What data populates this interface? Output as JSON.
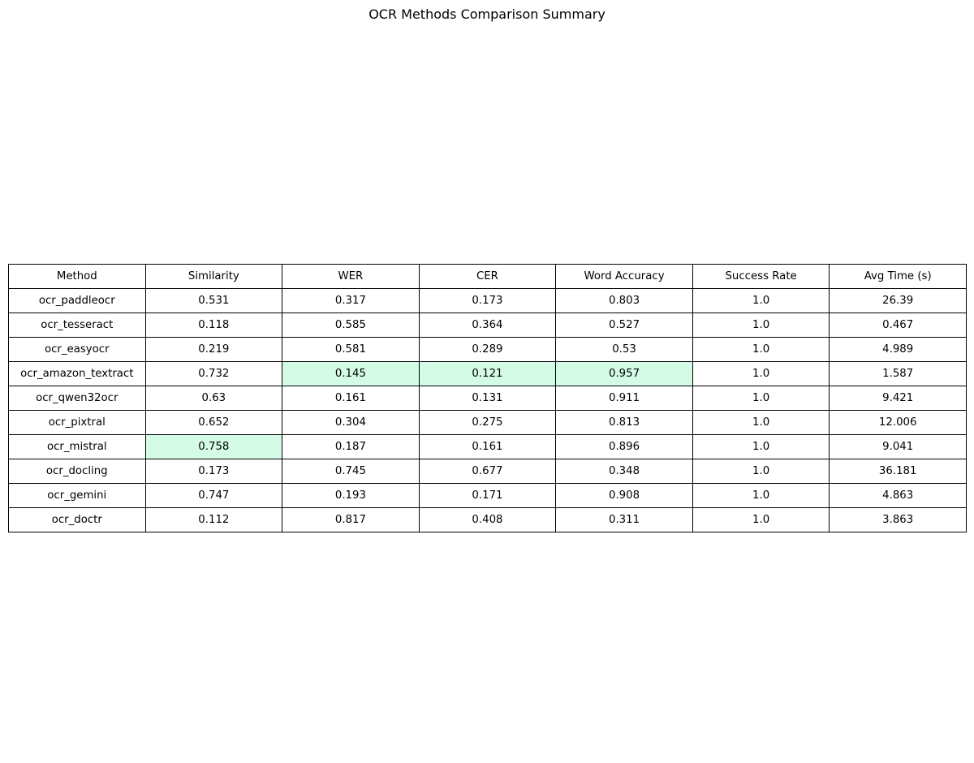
{
  "chart_data": {
    "type": "table",
    "title": "OCR Methods Comparison Summary",
    "columns": [
      "Method",
      "Similarity",
      "WER",
      "CER",
      "Word Accuracy",
      "Success Rate",
      "Avg Time (s)"
    ],
    "rows": [
      [
        "ocr_paddleocr",
        "0.531",
        "0.317",
        "0.173",
        "0.803",
        "1.0",
        "26.39"
      ],
      [
        "ocr_tesseract",
        "0.118",
        "0.585",
        "0.364",
        "0.527",
        "1.0",
        "0.467"
      ],
      [
        "ocr_easyocr",
        "0.219",
        "0.581",
        "0.289",
        "0.53",
        "1.0",
        "4.989"
      ],
      [
        "ocr_amazon_textract",
        "0.732",
        "0.145",
        "0.121",
        "0.957",
        "1.0",
        "1.587"
      ],
      [
        "ocr_qwen32ocr",
        "0.63",
        "0.161",
        "0.131",
        "0.911",
        "1.0",
        "9.421"
      ],
      [
        "ocr_pixtral",
        "0.652",
        "0.304",
        "0.275",
        "0.813",
        "1.0",
        "12.006"
      ],
      [
        "ocr_mistral",
        "0.758",
        "0.187",
        "0.161",
        "0.896",
        "1.0",
        "9.041"
      ],
      [
        "ocr_docling",
        "0.173",
        "0.745",
        "0.677",
        "0.348",
        "1.0",
        "36.181"
      ],
      [
        "ocr_gemini",
        "0.747",
        "0.193",
        "0.171",
        "0.908",
        "1.0",
        "4.863"
      ],
      [
        "ocr_doctr",
        "0.112",
        "0.817",
        "0.408",
        "0.311",
        "1.0",
        "3.863"
      ]
    ],
    "highlighted_cells": [
      {
        "method": "ocr_mistral",
        "column": "Similarity"
      },
      {
        "method": "ocr_amazon_textract",
        "column": "WER"
      },
      {
        "method": "ocr_amazon_textract",
        "column": "CER"
      },
      {
        "method": "ocr_amazon_textract",
        "column": "Word Accuracy"
      }
    ],
    "highlight_color": "#d4fbe6"
  }
}
